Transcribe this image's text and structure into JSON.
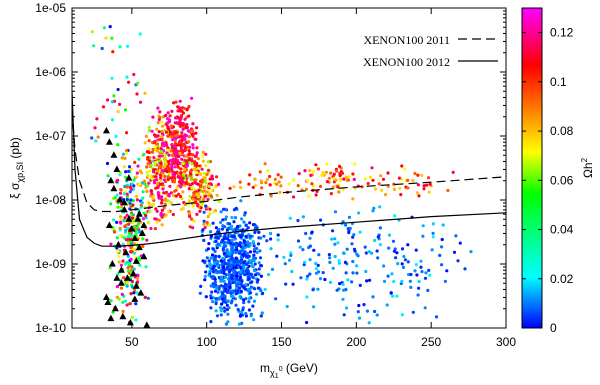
{
  "chart_data": {
    "type": "scatter",
    "xlabel": "m_{χ₁⁰} (GeV)",
    "ylabel": "ξ σ_{χp,SI} (pb)",
    "colorbar_label": "Ωh²",
    "xlim": [
      10,
      300
    ],
    "ylim": [
      1e-10,
      1e-05
    ],
    "y_scale": "log",
    "grid": false,
    "legend_position": "top-right",
    "x_ticks": [
      50,
      100,
      150,
      200,
      250,
      300
    ],
    "y_ticks": [
      {
        "value": 1e-10,
        "label": "1e-10"
      },
      {
        "value": 1e-09,
        "label": "1e-09"
      },
      {
        "value": 1e-08,
        "label": "1e-08"
      },
      {
        "value": 1e-07,
        "label": "1e-07"
      },
      {
        "value": 1e-06,
        "label": "1e-06"
      },
      {
        "value": 1e-05,
        "label": "1e-05"
      }
    ],
    "colorbar": {
      "range": [
        0,
        0.13
      ],
      "ticks": [
        0,
        0.02,
        0.04,
        0.06,
        0.08,
        0.1,
        0.12
      ],
      "tick_labels": [
        "0",
        "0.02",
        "0.04",
        "0.06",
        "0.08",
        "0.1",
        "0.12"
      ],
      "colors": [
        "#0000ff",
        "#00ffff",
        "#00ff00",
        "#ffff00",
        "#ff8000",
        "#ff0000",
        "#ff00ff"
      ]
    },
    "series": [
      {
        "name": "XENON100 2011",
        "style": "dashed",
        "x": [
          10,
          12,
          15,
          20,
          25,
          30,
          40,
          50,
          60,
          70,
          80,
          100,
          120,
          150,
          200,
          250,
          300
        ],
        "y": [
          2.5e-07,
          6e-08,
          2e-08,
          9e-09,
          7e-09,
          6.6e-09,
          6.6e-09,
          7e-09,
          7.5e-09,
          8e-09,
          8.5e-09,
          9.5e-09,
          1.1e-08,
          1.3e-08,
          1.6e-08,
          1.9e-08,
          2.3e-08
        ]
      },
      {
        "name": "XENON100 2012",
        "style": "solid",
        "x": [
          10,
          12,
          15,
          20,
          25,
          30,
          40,
          50,
          60,
          70,
          80,
          100,
          120,
          150,
          200,
          250,
          300
        ],
        "y": [
          5e-07,
          3e-08,
          5e-09,
          2.6e-09,
          2.1e-09,
          1.9e-09,
          1.9e-09,
          1.95e-09,
          2.05e-09,
          2.2e-09,
          2.4e-09,
          2.8e-09,
          3.2e-09,
          3.7e-09,
          4.5e-09,
          5.5e-09,
          6.3e-09
        ]
      },
      {
        "name": "",
        "marker": "triangle",
        "color": "#000000",
        "x": [
          33,
          35,
          38,
          40,
          36,
          42,
          45,
          48,
          50,
          52,
          55,
          58,
          37,
          43,
          47,
          53,
          56,
          34,
          39,
          44,
          49,
          54,
          57,
          41,
          46,
          51,
          35,
          45,
          55,
          38,
          48,
          58,
          33,
          43,
          53,
          36,
          52,
          40,
          60
        ],
        "y": [
          1.2e-07,
          8e-08,
          5e-08,
          3e-08,
          2e-08,
          1e-08,
          7e-09,
          5e-09,
          3.5e-09,
          2.5e-09,
          1.8e-09,
          1.3e-09,
          1e-09,
          8e-10,
          6e-10,
          4.5e-10,
          3.5e-10,
          2.5e-10,
          2e-10,
          1.5e-10,
          1.2e-10,
          5e-09,
          3e-09,
          2e-09,
          1.5e-09,
          7e-10,
          4e-09,
          9e-09,
          6e-09,
          1.5e-08,
          2.2e-08,
          4e-09,
          3e-10,
          5e-10,
          1.1e-09,
          1.4e-10,
          2.8e-10,
          6e-10,
          1.1e-10
        ]
      }
    ],
    "clusters": [
      {
        "x": [
          35,
          62
        ],
        "y": [
          1e-10,
          1e-07
        ],
        "omega": [
          0.0,
          0.13
        ],
        "n": 320
      },
      {
        "x": [
          58,
          80
        ],
        "y": [
          3e-09,
          3e-07
        ],
        "omega": [
          0.06,
          0.13
        ],
        "n": 260
      },
      {
        "x": [
          70,
          95
        ],
        "y": [
          1e-08,
          4e-07
        ],
        "omega": [
          0.09,
          0.13
        ],
        "n": 280
      },
      {
        "x": [
          80,
          110
        ],
        "y": [
          3e-09,
          8e-08
        ],
        "omega": [
          0.06,
          0.12
        ],
        "n": 200
      },
      {
        "x": [
          95,
          140
        ],
        "y": [
          1e-10,
          1e-08
        ],
        "omega": [
          0.0,
          0.015
        ],
        "n": 650
      },
      {
        "x": [
          120,
          280
        ],
        "y": [
          1e-10,
          1e-08
        ],
        "omega": [
          0.0,
          0.02
        ],
        "n": 220
      },
      {
        "x": [
          100,
          270
        ],
        "y": [
          1e-08,
          4e-08
        ],
        "omega": [
          0.07,
          0.12
        ],
        "n": 140
      },
      {
        "x": [
          15,
          60
        ],
        "y": [
          1e-08,
          1e-05
        ],
        "omega": [
          0.0,
          0.13
        ],
        "n": 40
      }
    ]
  }
}
